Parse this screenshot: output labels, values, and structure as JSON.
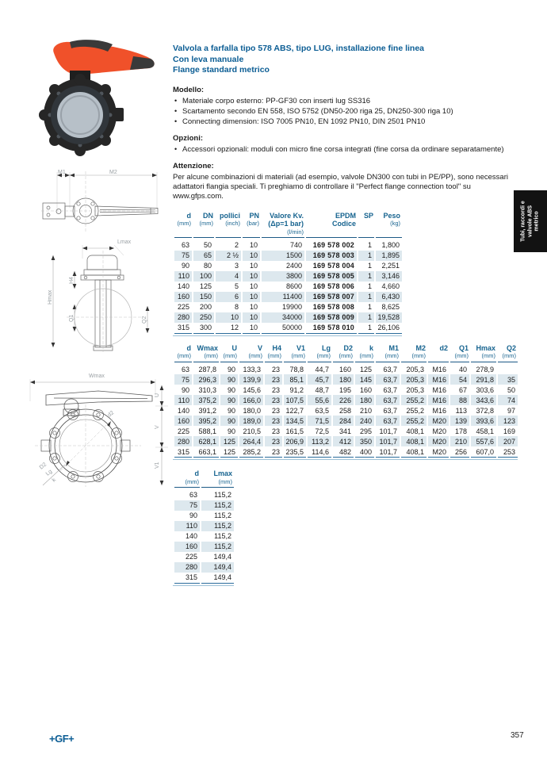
{
  "page": {
    "brand": "+GF+",
    "number": "357"
  },
  "colors": {
    "brand_blue": "#0b5d94",
    "table_header_blue": "#16638f",
    "row_shading": "#dde8ee",
    "handle_orange": "#f0512a",
    "tab_black": "#121212"
  },
  "side_tab": {
    "lines": [
      "Tubi, raccordi e",
      "valvole ABS",
      "metrico"
    ]
  },
  "header": {
    "title_lines": [
      "Valvola a farfalla tipo 578 ABS, tipo LUG,  installazione fine linea",
      "Con leva manuale",
      "Flange standard metrico"
    ]
  },
  "sections": {
    "modello": {
      "heading": "Modello:",
      "bullets": [
        "Materiale corpo esterno: PP-GF30 con inserti lug SS316",
        "Scartamento secondo EN 558, ISO 5752 (DN50-200 riga 25, DN250-300 riga 10)",
        "Connecting dimension: ISO 7005 PN10, EN 1092 PN10, DIN 2501 PN10"
      ]
    },
    "opzioni": {
      "heading": "Opzioni:",
      "bullets": [
        "Accessori opzionali: moduli con micro fine corsa integrati (fine corsa da ordinare separatamente)"
      ]
    },
    "attenzione": {
      "heading": "Attenzione:",
      "text": "Per alcune combinazioni di materiali (ad esempio, valvole DN300 con tubi in PE/PP), sono necessari adattatori flangia speciali. Ti preghiamo di controllare il \"Perfect flange connection tool\" su www.gfps.com."
    }
  },
  "table1": {
    "headers": [
      {
        "label": "d",
        "sub": "(mm)"
      },
      {
        "label": "DN",
        "sub": "(mm)"
      },
      {
        "label": "pollici",
        "sub": "(inch)"
      },
      {
        "label": "PN",
        "sub": "(bar)"
      },
      {
        "label": "Valore Kv.",
        "label2": "(Δp=1 bar)",
        "sub2": "(l/min)"
      },
      {
        "label": "EPDM",
        "label2": "Codice"
      },
      {
        "label": "SP"
      },
      {
        "label": "Peso",
        "sub": "(kg)"
      }
    ],
    "bold_col": 5,
    "rows": [
      [
        "63",
        "50",
        "2",
        "10",
        "740",
        "169 578 002",
        "1",
        "1,800"
      ],
      [
        "75",
        "65",
        "2 ½",
        "10",
        "1500",
        "169 578 003",
        "1",
        "1,895"
      ],
      [
        "90",
        "80",
        "3",
        "10",
        "2400",
        "169 578 004",
        "1",
        "2,251"
      ],
      [
        "110",
        "100",
        "4",
        "10",
        "3800",
        "169 578 005",
        "1",
        "3,146"
      ],
      [
        "140",
        "125",
        "5",
        "10",
        "8600",
        "169 578 006",
        "1",
        "4,660"
      ],
      [
        "160",
        "150",
        "6",
        "10",
        "11400",
        "169 578 007",
        "1",
        "6,430"
      ],
      [
        "225",
        "200",
        "8",
        "10",
        "19900",
        "169 578 008",
        "1",
        "8,625"
      ],
      [
        "280",
        "250",
        "10",
        "10",
        "34000",
        "169 578 009",
        "1",
        "19,528"
      ],
      [
        "315",
        "300",
        "12",
        "10",
        "50000",
        "169 578 010",
        "1",
        "26,106"
      ]
    ]
  },
  "table2": {
    "headers": [
      {
        "label": "d",
        "sub": "(mm)"
      },
      {
        "label": "Wmax",
        "sub": "(mm)"
      },
      {
        "label": "U",
        "sub": "(mm)"
      },
      {
        "label": "V",
        "sub": "(mm)"
      },
      {
        "label": "H4",
        "sub": "(mm)"
      },
      {
        "label": "V1",
        "sub": "(mm)"
      },
      {
        "label": "Lg",
        "sub": "(mm)"
      },
      {
        "label": "D2",
        "sub": "(mm)"
      },
      {
        "label": "k",
        "sub": "(mm)"
      },
      {
        "label": "M1",
        "sub": "(mm)"
      },
      {
        "label": "M2",
        "sub": "(mm)"
      },
      {
        "label": "d2"
      },
      {
        "label": "Q1",
        "sub": "(mm)"
      },
      {
        "label": "Hmax",
        "sub": "(mm)"
      },
      {
        "label": "Q2",
        "sub": "(mm)"
      }
    ],
    "rows": [
      [
        "63",
        "287,8",
        "90",
        "133,3",
        "23",
        "78,8",
        "44,7",
        "160",
        "125",
        "63,7",
        "205,3",
        "M16",
        "40",
        "278,9",
        ""
      ],
      [
        "75",
        "296,3",
        "90",
        "139,9",
        "23",
        "85,1",
        "45,7",
        "180",
        "145",
        "63,7",
        "205,3",
        "M16",
        "54",
        "291,8",
        "35"
      ],
      [
        "90",
        "310,3",
        "90",
        "145,6",
        "23",
        "91,2",
        "48,7",
        "195",
        "160",
        "63,7",
        "205,3",
        "M16",
        "67",
        "303,6",
        "50"
      ],
      [
        "110",
        "375,2",
        "90",
        "166,0",
        "23",
        "107,5",
        "55,6",
        "226",
        "180",
        "63,7",
        "255,2",
        "M16",
        "88",
        "343,6",
        "74"
      ],
      [
        "140",
        "391,2",
        "90",
        "180,0",
        "23",
        "122,7",
        "63,5",
        "258",
        "210",
        "63,7",
        "255,2",
        "M16",
        "113",
        "372,8",
        "97"
      ],
      [
        "160",
        "395,2",
        "90",
        "189,0",
        "23",
        "134,5",
        "71,5",
        "284",
        "240",
        "63,7",
        "255,2",
        "M20",
        "139",
        "393,6",
        "123"
      ],
      [
        "225",
        "588,1",
        "90",
        "210,5",
        "23",
        "161,5",
        "72,5",
        "341",
        "295",
        "101,7",
        "408,1",
        "M20",
        "178",
        "458,1",
        "169"
      ],
      [
        "280",
        "628,1",
        "125",
        "264,4",
        "23",
        "206,9",
        "113,2",
        "412",
        "350",
        "101,7",
        "408,1",
        "M20",
        "210",
        "557,6",
        "207"
      ],
      [
        "315",
        "663,1",
        "125",
        "285,2",
        "23",
        "235,5",
        "114,6",
        "482",
        "400",
        "101,7",
        "408,1",
        "M20",
        "256",
        "607,0",
        "253"
      ]
    ]
  },
  "table3": {
    "headers": [
      {
        "label": "d",
        "sub": "(mm)"
      },
      {
        "label": "Lmax",
        "sub": "(mm)"
      }
    ],
    "rows": [
      [
        "63",
        "115,2"
      ],
      [
        "75",
        "115,2"
      ],
      [
        "90",
        "115,2"
      ],
      [
        "110",
        "115,2"
      ],
      [
        "140",
        "115,2"
      ],
      [
        "160",
        "115,2"
      ],
      [
        "225",
        "149,4"
      ],
      [
        "280",
        "149,4"
      ],
      [
        "315",
        "149,4"
      ]
    ]
  },
  "drawings": {
    "top_view": {
      "m1": "M1",
      "m2": "M2"
    },
    "side_view": {
      "lmax": "Lmax",
      "hmax": "Hmax",
      "h4": "H4",
      "q1": "Q1",
      "q2": "Q2"
    },
    "front_view": {
      "wmax": "Wmax",
      "u": "U",
      "v": "V",
      "v1": "V1",
      "d2": "d2",
      "D2": "D2",
      "lg": "Lg",
      "k": "k"
    }
  }
}
